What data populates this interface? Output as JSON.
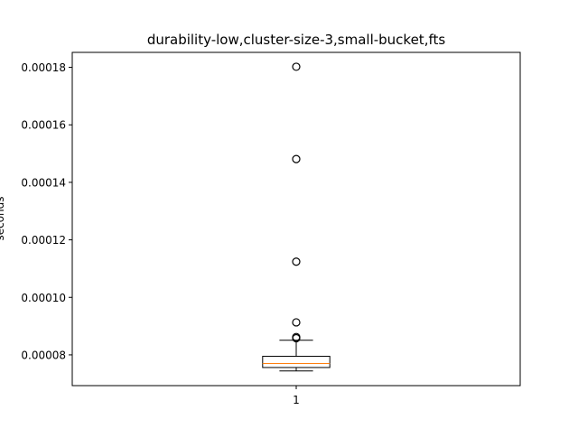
{
  "chart_data": {
    "type": "box",
    "title": "durability-low,cluster-size-3,small-bucket,fts",
    "xlabel": "",
    "ylabel": "seconds",
    "categories": [
      "1"
    ],
    "ylim": [
      6.93e-05,
      0.0001852
    ],
    "yticks": [
      8e-05,
      0.0001,
      0.00012,
      0.00014,
      0.00016,
      0.00018
    ],
    "ytick_labels": [
      "0.00008",
      "0.00010",
      "0.00012",
      "0.00014",
      "0.00016",
      "0.00018"
    ],
    "grid": false,
    "boxes": [
      {
        "category": "1",
        "whisker_low": 7.44e-05,
        "q1": 7.56e-05,
        "median": 7.7e-05,
        "q3": 7.95e-05,
        "whisker_high": 8.51e-05,
        "outliers": [
          8.58e-05,
          8.62e-05,
          9.13e-05,
          0.0001124,
          0.0001481,
          0.0001802
        ]
      }
    ],
    "colors": {
      "box": "#000000",
      "median": "#ff7f0e",
      "outlier": "#000000"
    }
  }
}
